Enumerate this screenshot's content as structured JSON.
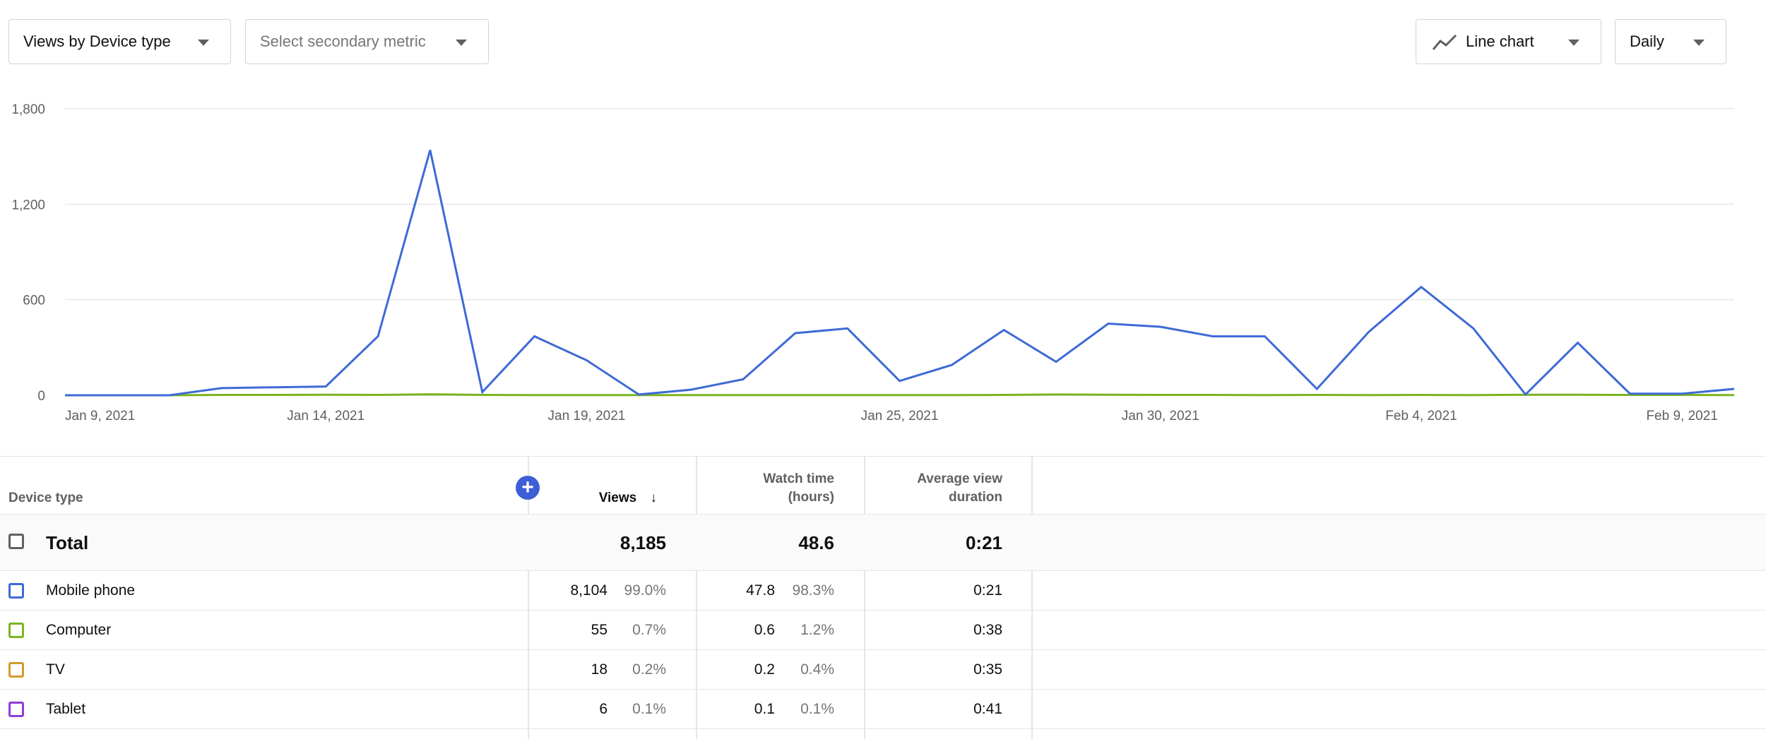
{
  "toolbar": {
    "metric_select": "Views by Device type",
    "secondary_select": "Select secondary metric",
    "chart_type_select": "Line chart",
    "period_select": "Daily"
  },
  "chart_data": {
    "type": "line",
    "x": [
      "Jan 9, 2021",
      "Jan 10, 2021",
      "Jan 11, 2021",
      "Jan 12, 2021",
      "Jan 13, 2021",
      "Jan 14, 2021",
      "Jan 15, 2021",
      "Jan 16, 2021",
      "Jan 17, 2021",
      "Jan 18, 2021",
      "Jan 19, 2021",
      "Jan 20, 2021",
      "Jan 21, 2021",
      "Jan 22, 2021",
      "Jan 23, 2021",
      "Jan 24, 2021",
      "Jan 25, 2021",
      "Jan 26, 2021",
      "Jan 27, 2021",
      "Jan 28, 2021",
      "Jan 29, 2021",
      "Jan 30, 2021",
      "Jan 31, 2021",
      "Feb 1, 2021",
      "Feb 2, 2021",
      "Feb 3, 2021",
      "Feb 4, 2021",
      "Feb 5, 2021",
      "Feb 6, 2021",
      "Feb 7, 2021",
      "Feb 8, 2021",
      "Feb 9, 2021",
      "Feb 10, 2021"
    ],
    "x_tick_labels": [
      "Jan 9, 2021",
      "Jan 14, 2021",
      "Jan 19, 2021",
      "Jan 25, 2021",
      "Jan 30, 2021",
      "Feb 4, 2021",
      "Feb 9, 2021"
    ],
    "y_ticks": [
      "0",
      "600",
      "1,200",
      "1,800"
    ],
    "ylim": [
      0,
      1800
    ],
    "grid": true,
    "series": [
      {
        "color": "#3e6ad6",
        "values": [
          0,
          0,
          0,
          45,
          50,
          55,
          370,
          1540,
          20,
          370,
          220,
          5,
          35,
          100,
          390,
          420,
          90,
          190,
          410,
          210,
          450,
          430,
          370,
          370,
          40,
          400,
          680,
          420,
          5,
          330,
          10,
          10,
          40
        ]
      },
      {
        "color": "#7cb41e",
        "values": [
          0,
          0,
          0,
          2,
          2,
          3,
          2,
          6,
          2,
          1,
          1,
          1,
          1,
          1,
          1,
          1,
          1,
          1,
          2,
          5,
          3,
          2,
          2,
          1,
          2,
          1,
          2,
          1,
          3,
          3,
          2,
          2,
          1
        ]
      }
    ]
  },
  "table": {
    "col_device": "Device type",
    "col_views": "Views",
    "col_watch_1": "Watch time",
    "col_watch_2": "(hours)",
    "col_avg_1": "Average view",
    "col_avg_2": "duration",
    "add_column": "+",
    "total": {
      "label": "Total",
      "views": "8,185",
      "watch": "48.6",
      "avg": "0:21"
    },
    "rows": [
      {
        "label": "Mobile phone",
        "views": "8,104",
        "views_pct": "99.0%",
        "watch": "47.8",
        "watch_pct": "98.3%",
        "avg": "0:21",
        "color": "#3e6ad6"
      },
      {
        "label": "Computer",
        "views": "55",
        "views_pct": "0.7%",
        "watch": "0.6",
        "watch_pct": "1.2%",
        "avg": "0:38",
        "color": "#7cb41e"
      },
      {
        "label": "TV",
        "views": "18",
        "views_pct": "0.2%",
        "watch": "0.2",
        "watch_pct": "0.4%",
        "avg": "0:35",
        "color": "#d39a2a"
      },
      {
        "label": "Tablet",
        "views": "6",
        "views_pct": "0.1%",
        "watch": "0.1",
        "watch_pct": "0.1%",
        "avg": "0:41",
        "color": "#8e3ed6"
      }
    ]
  }
}
